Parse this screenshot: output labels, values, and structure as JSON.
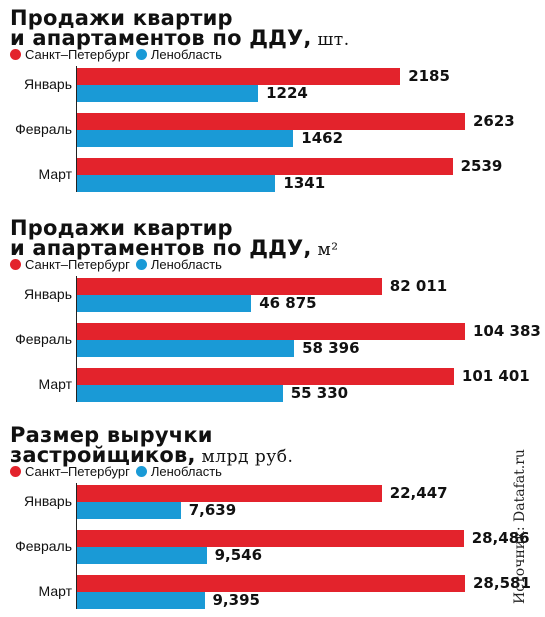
{
  "colors": {
    "spb": "#e3232c",
    "lo": "#1a9ad6"
  },
  "legend": {
    "spb": "Санкт–Петербург",
    "lo": "Ленобласть"
  },
  "source": "Источник: Datafat.ru",
  "chart_data": [
    {
      "type": "bar",
      "title_line1": "Продажи квартир",
      "title_line2": "и апартаментов по ДДУ,",
      "unit": "шт.",
      "categories": [
        "Январь",
        "Февраль",
        "Март"
      ],
      "series": [
        {
          "name": "Санкт–Петербург",
          "values": [
            2185,
            2623,
            2539
          ],
          "labels": [
            "2185",
            "2623",
            "2539"
          ]
        },
        {
          "name": "Ленобласть",
          "values": [
            1224,
            1462,
            1341
          ],
          "labels": [
            "1224",
            "1462",
            "1341"
          ]
        }
      ]
    },
    {
      "type": "bar",
      "title_line1": "Продажи квартир",
      "title_line2": "и апартаментов по ДДУ,",
      "unit": "м²",
      "categories": [
        "Январь",
        "Февраль",
        "Март"
      ],
      "series": [
        {
          "name": "Санкт–Петербург",
          "values": [
            82011,
            104383,
            101401
          ],
          "labels": [
            "82 011",
            "104 383",
            "101 401"
          ]
        },
        {
          "name": "Ленобласть",
          "values": [
            46875,
            58396,
            55330
          ],
          "labels": [
            "46 875",
            "58 396",
            "55 330"
          ]
        }
      ]
    },
    {
      "type": "bar",
      "title_line1": "Размер выручки",
      "title_line2": "застройщиков,",
      "unit": "млрд руб.",
      "categories": [
        "Январь",
        "Февраль",
        "Март"
      ],
      "series": [
        {
          "name": "Санкт–Петербург",
          "values": [
            22.447,
            28.486,
            28.581
          ],
          "labels": [
            "22,447",
            "28,486",
            "28,581"
          ]
        },
        {
          "name": "Ленобласть",
          "values": [
            7.639,
            9.546,
            9.395
          ],
          "labels": [
            "7,639",
            "9,546",
            "9,395"
          ]
        }
      ]
    }
  ]
}
